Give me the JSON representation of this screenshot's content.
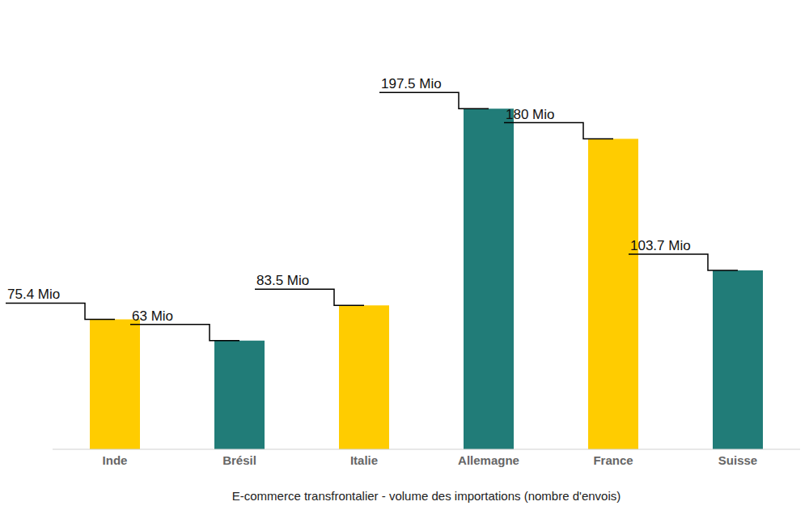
{
  "chart_data": {
    "type": "bar",
    "categories": [
      "Inde",
      "Brésil",
      "Italie",
      "Allemagne",
      "France",
      "Suisse"
    ],
    "values": [
      75.4,
      63,
      83.5,
      197.5,
      180,
      103.7
    ],
    "value_labels": [
      "75.4 Mio",
      "63 Mio",
      "83.5 Mio",
      "197.5 Mio",
      "180 Mio",
      "103.7 Mio"
    ],
    "colors": [
      "#FFCC00",
      "#217C78",
      "#FFCC00",
      "#217C78",
      "#FFCC00",
      "#217C78"
    ],
    "x_label": "E-commerce transfrontalier - volume des importations (nombre d'envois)",
    "ylim": [
      0,
      200
    ],
    "tick_labels": "x",
    "data_labels": true,
    "grid": false
  }
}
